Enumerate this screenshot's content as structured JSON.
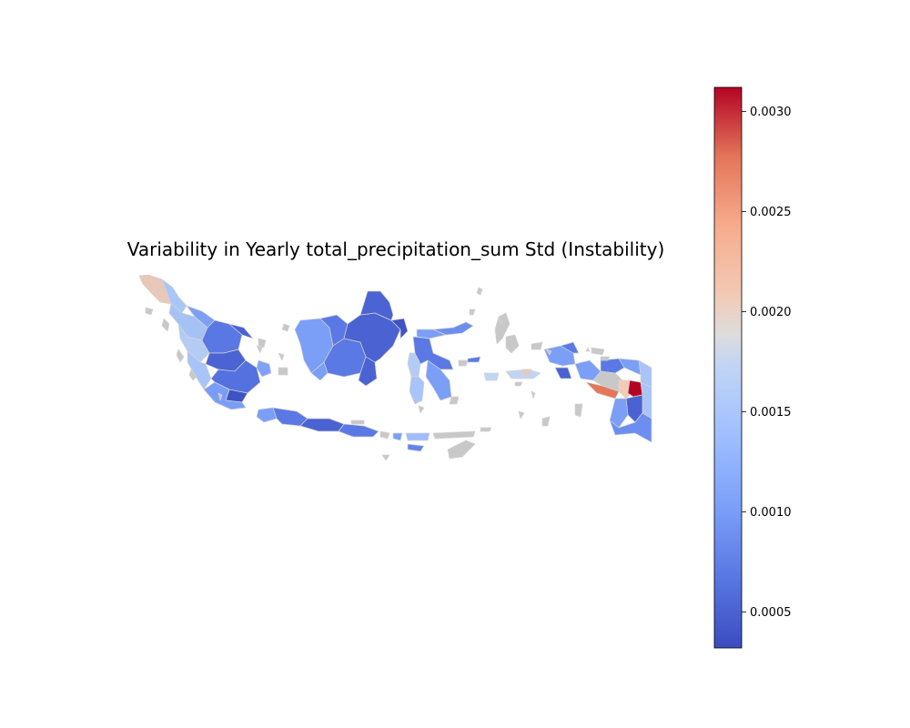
{
  "chart_data": {
    "type": "choropleth",
    "title": "Variability in Yearly total_precipitation_sum Std (Instability)",
    "colormap": "coolwarm",
    "colorbar": {
      "vmin": 0.00032,
      "vmax": 0.00312,
      "ticks": [
        0.0005,
        0.001,
        0.0015,
        0.002,
        0.0025,
        0.003
      ],
      "tick_labels": [
        "0.0005",
        "0.0010",
        "0.0015",
        "0.0020",
        "0.0025",
        "0.0030"
      ],
      "orientation": "vertical",
      "placement": "right"
    },
    "missing_color": "#c8c8c8",
    "edge_color": "#d4d4d4",
    "axes_visible": false,
    "regions": [
      {
        "name": "Aceh",
        "value": 0.0019
      },
      {
        "name": "North Sumatra",
        "value": 0.0011
      },
      {
        "name": "West Sumatra",
        "value": 0.0012
      },
      {
        "name": "Riau",
        "value": 0.0006
      },
      {
        "name": "Jambi",
        "value": 0.0005
      },
      {
        "name": "South Sumatra",
        "value": 0.0006
      },
      {
        "name": "Bengkulu",
        "value": 0.0012
      },
      {
        "name": "Lampung",
        "value": 0.0009
      },
      {
        "name": "Bangka Belitung",
        "value": 0.001
      },
      {
        "name": "Riau Islands",
        "value": null
      },
      {
        "name": "Banten",
        "value": 0.0009
      },
      {
        "name": "West Java",
        "value": 0.0008
      },
      {
        "name": "Central Java",
        "value": 0.0007
      },
      {
        "name": "Yogyakarta",
        "value": 0.0007
      },
      {
        "name": "East Java",
        "value": 0.0008
      },
      {
        "name": "Bali",
        "value": null
      },
      {
        "name": "West Nusa Tenggara",
        "value": 0.0011
      },
      {
        "name": "East Nusa Tenggara",
        "value": null
      },
      {
        "name": "West Kalimantan",
        "value": 0.0009
      },
      {
        "name": "Central Kalimantan",
        "value": 0.0008
      },
      {
        "name": "South Kalimantan",
        "value": 0.0006
      },
      {
        "name": "East Kalimantan",
        "value": 0.0005
      },
      {
        "name": "North Kalimantan",
        "value": 0.0005
      },
      {
        "name": "North Sulawesi",
        "value": 0.0008
      },
      {
        "name": "Gorontalo",
        "value": 0.001
      },
      {
        "name": "Central Sulawesi",
        "value": 0.0011
      },
      {
        "name": "West Sulawesi",
        "value": 0.0013
      },
      {
        "name": "South Sulawesi",
        "value": 0.0012
      },
      {
        "name": "Southeast Sulawesi",
        "value": 0.0009
      },
      {
        "name": "Maluku",
        "value": 0.0014
      },
      {
        "name": "North Maluku",
        "value": null
      },
      {
        "name": "West Papua",
        "value": 0.0008
      },
      {
        "name": "Papua",
        "value": 0.0016
      },
      {
        "name": "Papua Highlands",
        "value": 0.0031
      },
      {
        "name": "Papua Central",
        "value": 0.0027
      }
    ]
  }
}
